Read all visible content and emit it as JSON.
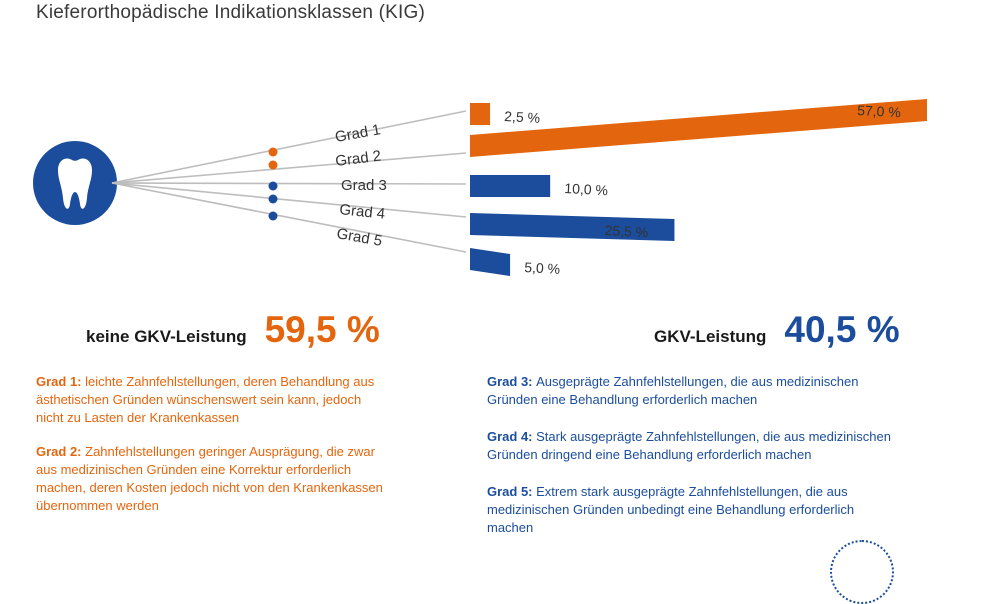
{
  "title": "Kieferorthopädische Indikationsklassen (KIG)",
  "colors": {
    "orange": "#e3660f",
    "blue": "#1b4d9c",
    "gray": "#bdbdbd"
  },
  "icon": "tooth-icon",
  "chart_data": {
    "type": "bar",
    "categories": [
      "Grad 1",
      "Grad 2",
      "Grad 3",
      "Grad 4",
      "Grad 5"
    ],
    "values": [
      2.5,
      57.0,
      10.0,
      25.5,
      5.0
    ],
    "value_labels": [
      "2,5 %",
      "57,0 %",
      "10,0 %",
      "25,5 %",
      "5,0 %"
    ],
    "category_colors": [
      "orange",
      "orange",
      "blue",
      "blue",
      "blue"
    ],
    "unit": "%",
    "orientation": "horizontal"
  },
  "summary": {
    "left": {
      "label": "keine GKV-Leistung",
      "value": "59,5 %"
    },
    "right": {
      "label": "GKV-Leistung",
      "value": "40,5 %"
    }
  },
  "descriptions": {
    "left": [
      {
        "head": "Grad 1:",
        "lines": [
          "leichte Zahnfehlstellungen, deren Behandlung aus",
          "ästhetischen Gründen wünschenswert sein kann, jedoch",
          "nicht zu Lasten der Krankenkassen"
        ]
      },
      {
        "head": "Grad 2:",
        "lines": [
          "Zahnfehlstellungen geringer Ausprägung, die zwar",
          "aus medizinischen Gründen eine Korrektur erforderlich",
          "machen, deren Kosten jedoch nicht von den Krankenkassen",
          "übernommen werden"
        ]
      }
    ],
    "right": [
      {
        "head": "Grad 3:",
        "lines": [
          "Ausgeprägte Zahnfehlstellungen, die aus medizinischen",
          "Gründen eine Behandlung erforderlich machen"
        ]
      },
      {
        "head": "Grad 4:",
        "lines": [
          "Stark ausgeprägte Zahnfehlstellungen, die aus medizinischen",
          "Gründen dringend eine Behandlung erforderlich machen"
        ]
      },
      {
        "head": "Grad 5:",
        "lines": [
          "Extrem stark ausgeprägte Zahnfehlstellungen, die aus",
          "medizinischen  Gründen unbedingt eine Behandlung erforderlich",
          "machen"
        ]
      }
    ]
  }
}
